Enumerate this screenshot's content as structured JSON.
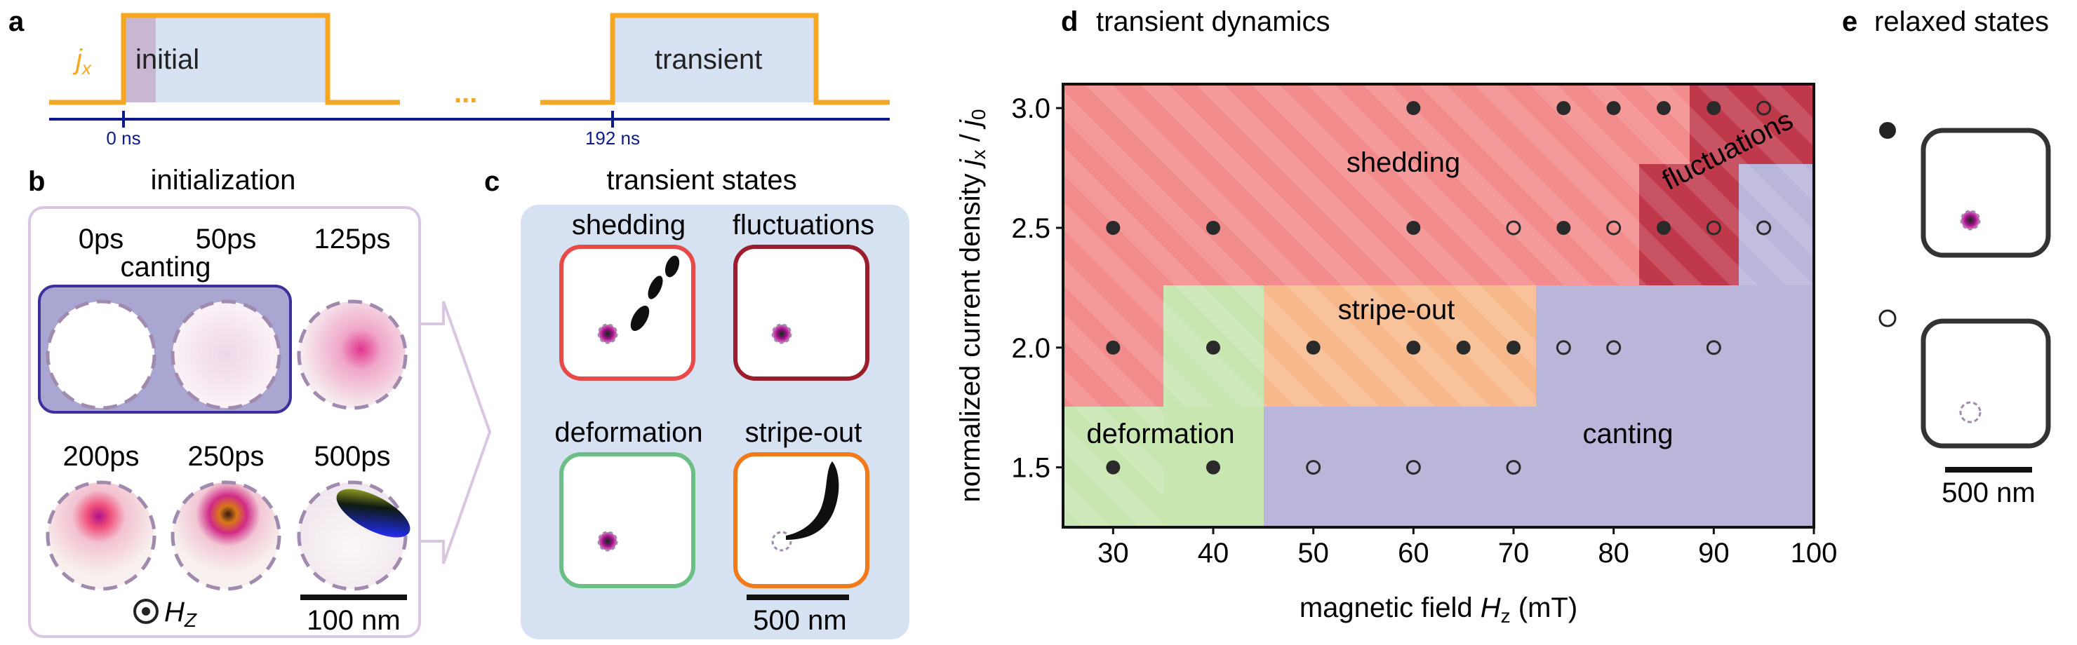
{
  "panels": {
    "a": {
      "letter": "a",
      "jx_symbol": "j",
      "jx_sub": "x",
      "initial_label": "initial",
      "transient_label": "transient",
      "ellipsis": "...",
      "tick0": "0 ns",
      "tick1": "192 ns"
    },
    "b": {
      "letter": "b",
      "title": "initialization",
      "canting_label": "canting",
      "field_symbol": "H",
      "field_sub": "Z",
      "scalebar": "100 nm",
      "times": [
        "0ps",
        "50ps",
        "125ps",
        "200ps",
        "250ps",
        "500ps"
      ]
    },
    "c": {
      "letter": "c",
      "title": "transient states",
      "scalebar": "500 nm",
      "states": [
        "shedding",
        "fluctuations",
        "deformation",
        "stripe-out"
      ]
    },
    "d": {
      "letter": "d",
      "title": "transient dynamics"
    },
    "e": {
      "letter": "e",
      "title": "relaxed states",
      "scalebar": "500 nm"
    }
  },
  "colors": {
    "pulse": "#f5a623",
    "timeline": "#0d1b8c",
    "shedding": "#f28b8b",
    "fluctuations": "#c0394b",
    "deformation": "#c8e6b0",
    "stripe_out": "#f7b98c",
    "canting": "#b9b6d9",
    "panel_bg": "#d6e1f2",
    "frame_shedding": "#e84a4a",
    "frame_fluctuations": "#9c1e2c",
    "frame_deformation": "#6cbf84",
    "frame_stripe": "#f27a1a"
  },
  "chart_data": {
    "type": "scatter",
    "title": "transient dynamics",
    "xlabel": "magnetic field H_z (mT)",
    "ylabel": "normalized current density j_x / j_0",
    "xlim": [
      25,
      100
    ],
    "ylim": [
      1.25,
      3.1
    ],
    "xticks": [
      30,
      40,
      50,
      60,
      70,
      80,
      90,
      100
    ],
    "yticks": [
      1.5,
      2.0,
      2.5,
      3.0
    ],
    "ytick_labels": [
      "1.5",
      "2.0",
      "2.5",
      "3.0"
    ],
    "region_labels": [
      "shedding",
      "fluctuations",
      "stripe-out",
      "deformation",
      "canting"
    ],
    "series": [
      {
        "marker": "filled",
        "points": [
          [
            60,
            3.0
          ],
          [
            75,
            3.0
          ],
          [
            80,
            3.0
          ],
          [
            85,
            3.0
          ],
          [
            90,
            3.0
          ],
          [
            30,
            2.5
          ],
          [
            40,
            2.5
          ],
          [
            60,
            2.5
          ],
          [
            75,
            2.5
          ],
          [
            85,
            2.5
          ],
          [
            30,
            2.0
          ],
          [
            40,
            2.0
          ],
          [
            50,
            2.0
          ],
          [
            60,
            2.0
          ],
          [
            65,
            2.0
          ],
          [
            70,
            2.0
          ],
          [
            30,
            1.5
          ],
          [
            40,
            1.5
          ]
        ]
      },
      {
        "marker": "open",
        "points": [
          [
            95,
            3.0
          ],
          [
            70,
            2.5
          ],
          [
            80,
            2.5
          ],
          [
            90,
            2.5
          ],
          [
            95,
            2.5
          ],
          [
            75,
            2.0
          ],
          [
            80,
            2.0
          ],
          [
            90,
            2.0
          ],
          [
            50,
            1.5
          ],
          [
            60,
            1.5
          ],
          [
            70,
            1.5
          ]
        ]
      }
    ]
  }
}
